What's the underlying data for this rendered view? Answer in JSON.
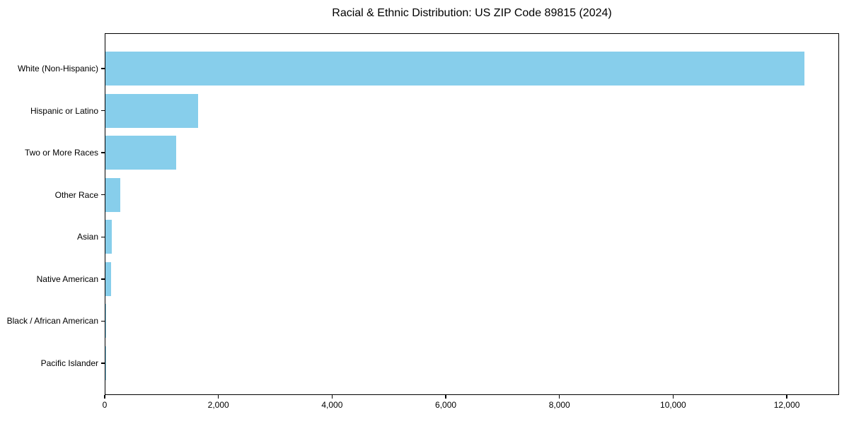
{
  "chart_data": {
    "type": "bar",
    "orientation": "horizontal",
    "title": "Racial & Ethnic Distribution: US ZIP Code 89815 (2024)",
    "categories": [
      "White (Non-Hispanic)",
      "Hispanic or Latino",
      "Two or More Races",
      "Other Race",
      "Asian",
      "Native American",
      "Black / African American",
      "Pacific Islander"
    ],
    "values": [
      12300,
      1630,
      1240,
      260,
      115,
      100,
      12,
      3
    ],
    "xlabel": "",
    "ylabel": "",
    "xlim": [
      0,
      12920
    ],
    "x_ticks": [
      0,
      2000,
      4000,
      6000,
      8000,
      10000,
      12000
    ],
    "x_tick_labels": [
      "0",
      "2,000",
      "4,000",
      "6,000",
      "8,000",
      "10,000",
      "12,000"
    ],
    "bar_color": "#87CEEB",
    "background_color": "#ffffff",
    "grid": false,
    "legend": null
  }
}
